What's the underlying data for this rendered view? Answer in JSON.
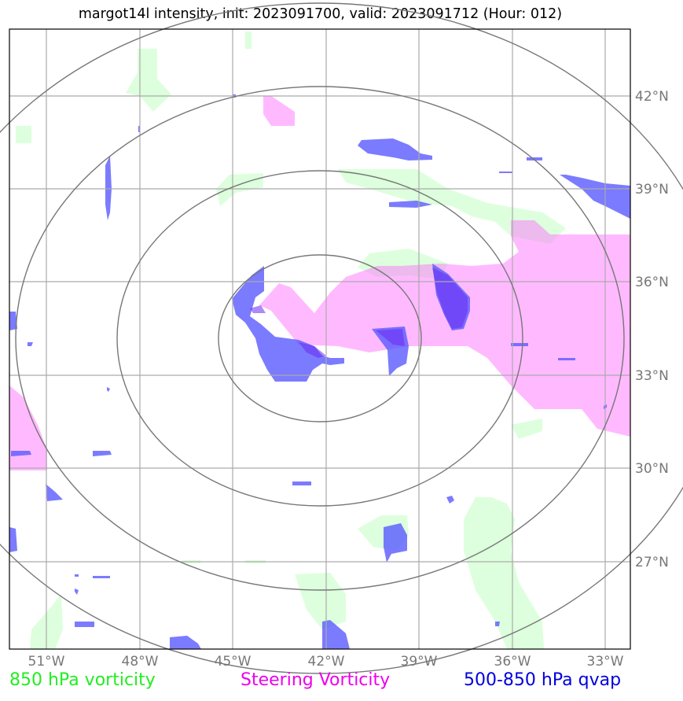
{
  "title": "margot14l intensity, init: 2023091700, valid: 2023091712 (Hour: 012)",
  "chart_data": {
    "type": "map",
    "x_ticks": [
      "51°W",
      "48°W",
      "45°W",
      "42°W",
      "39°W",
      "36°W",
      "33°W"
    ],
    "y_ticks": [
      "42°N",
      "39°N",
      "36°N",
      "33°N",
      "30°N",
      "27°N"
    ],
    "lon_range": [
      -52.2,
      -32.2
    ],
    "lat_range": [
      24.8,
      44.8
    ],
    "center": {
      "lon": -42.2,
      "lat": 34.3
    },
    "grid": true,
    "legend_position": "bottom",
    "layers": [
      {
        "name": "850 hPa vorticity",
        "color": "#22ee22"
      },
      {
        "name": "Steering Vorticity",
        "color": "#ee00ee"
      },
      {
        "name": "500-850 hPa qvap",
        "color": "#0000dd"
      }
    ]
  },
  "colors": {
    "vorticity_fill": "#ddffdd",
    "steering_fill": "#ffbbff",
    "qvap_fill": "#7777ff",
    "grid": "#aaaaaa",
    "rings": "#777777"
  }
}
